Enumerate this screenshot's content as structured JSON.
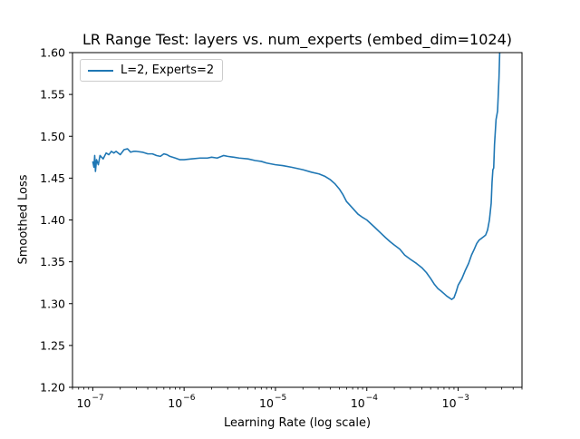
{
  "chart_data": {
    "type": "line",
    "title": "LR Range Test: layers vs. num_experts (embed_dim=1024)",
    "xlabel": "Learning Rate (log scale)",
    "ylabel": "Smoothed Loss",
    "x_scale": "log",
    "xlim": [
      6e-08,
      0.005
    ],
    "ylim": [
      1.2,
      1.6
    ],
    "x_ticks": [
      {
        "base": "10",
        "exp": "−7",
        "value": 1e-07
      },
      {
        "base": "10",
        "exp": "−6",
        "value": 1e-06
      },
      {
        "base": "10",
        "exp": "−5",
        "value": 1e-05
      },
      {
        "base": "10",
        "exp": "−4",
        "value": 0.0001
      },
      {
        "base": "10",
        "exp": "−3",
        "value": 0.001
      }
    ],
    "y_ticks": [
      "1.20",
      "1.25",
      "1.30",
      "1.35",
      "1.40",
      "1.45",
      "1.50",
      "1.55",
      "1.60"
    ],
    "grid": false,
    "legend_position": "top-left",
    "colors": {
      "series": "#1f77b4"
    },
    "series": [
      {
        "name": "L=2, Experts=2",
        "points": [
          [
            1e-07,
            1.47
          ],
          [
            1.03e-07,
            1.463
          ],
          [
            1.05e-07,
            1.477
          ],
          [
            1.07e-07,
            1.458
          ],
          [
            1.1e-07,
            1.472
          ],
          [
            1.15e-07,
            1.466
          ],
          [
            1.2e-07,
            1.477
          ],
          [
            1.3e-07,
            1.473
          ],
          [
            1.4e-07,
            1.48
          ],
          [
            1.5e-07,
            1.478
          ],
          [
            1.6e-07,
            1.482
          ],
          [
            1.7e-07,
            1.48
          ],
          [
            1.8e-07,
            1.482
          ],
          [
            2e-07,
            1.478
          ],
          [
            2.2e-07,
            1.484
          ],
          [
            2.4e-07,
            1.485
          ],
          [
            2.6e-07,
            1.481
          ],
          [
            2.8e-07,
            1.482
          ],
          [
            3e-07,
            1.482
          ],
          [
            3.5e-07,
            1.481
          ],
          [
            4e-07,
            1.479
          ],
          [
            4.5e-07,
            1.479
          ],
          [
            5e-07,
            1.477
          ],
          [
            5.5e-07,
            1.476
          ],
          [
            6e-07,
            1.479
          ],
          [
            6.5e-07,
            1.478
          ],
          [
            7e-07,
            1.476
          ],
          [
            8e-07,
            1.474
          ],
          [
            9e-07,
            1.472
          ],
          [
            1e-06,
            1.472
          ],
          [
            1.2e-06,
            1.473
          ],
          [
            1.5e-06,
            1.474
          ],
          [
            1.8e-06,
            1.474
          ],
          [
            2e-06,
            1.475
          ],
          [
            2.3e-06,
            1.474
          ],
          [
            2.7e-06,
            1.477
          ],
          [
            3e-06,
            1.476
          ],
          [
            3.5e-06,
            1.475
          ],
          [
            4e-06,
            1.474
          ],
          [
            5e-06,
            1.473
          ],
          [
            6e-06,
            1.471
          ],
          [
            7e-06,
            1.47
          ],
          [
            8e-06,
            1.468
          ],
          [
            1e-05,
            1.466
          ],
          [
            1.2e-05,
            1.465
          ],
          [
            1.5e-05,
            1.463
          ],
          [
            2e-05,
            1.46
          ],
          [
            2.5e-05,
            1.457
          ],
          [
            3e-05,
            1.455
          ],
          [
            3.5e-05,
            1.452
          ],
          [
            4e-05,
            1.448
          ],
          [
            4.5e-05,
            1.443
          ],
          [
            5e-05,
            1.437
          ],
          [
            5.5e-05,
            1.43
          ],
          [
            6e-05,
            1.422
          ],
          [
            7e-05,
            1.414
          ],
          [
            8e-05,
            1.407
          ],
          [
            9e-05,
            1.403
          ],
          [
            0.0001,
            1.4
          ],
          [
            0.00012,
            1.392
          ],
          [
            0.00014,
            1.385
          ],
          [
            0.00016,
            1.379
          ],
          [
            0.00018,
            1.374
          ],
          [
            0.0002,
            1.37
          ],
          [
            0.00023,
            1.365
          ],
          [
            0.00026,
            1.358
          ],
          [
            0.0003,
            1.353
          ],
          [
            0.00035,
            1.348
          ],
          [
            0.0004,
            1.343
          ],
          [
            0.00045,
            1.337
          ],
          [
            0.0005,
            1.33
          ],
          [
            0.00055,
            1.323
          ],
          [
            0.0006,
            1.318
          ],
          [
            0.00065,
            1.315
          ],
          [
            0.0007,
            1.312
          ],
          [
            0.00075,
            1.309
          ],
          [
            0.0008,
            1.307
          ],
          [
            0.00085,
            1.305
          ],
          [
            0.0009,
            1.307
          ],
          [
            0.00095,
            1.314
          ],
          [
            0.001,
            1.322
          ],
          [
            0.0011,
            1.33
          ],
          [
            0.0012,
            1.34
          ],
          [
            0.0013,
            1.348
          ],
          [
            0.0014,
            1.358
          ],
          [
            0.0015,
            1.365
          ],
          [
            0.0016,
            1.372
          ],
          [
            0.0017,
            1.376
          ],
          [
            0.0018,
            1.378
          ],
          [
            0.0019,
            1.38
          ],
          [
            0.002,
            1.382
          ],
          [
            0.0021,
            1.388
          ],
          [
            0.0022,
            1.4
          ],
          [
            0.0023,
            1.42
          ],
          [
            0.00235,
            1.445
          ],
          [
            0.0024,
            1.46
          ],
          [
            0.00245,
            1.462
          ],
          [
            0.0025,
            1.49
          ],
          [
            0.0026,
            1.52
          ],
          [
            0.0027,
            1.53
          ],
          [
            0.00275,
            1.55
          ],
          [
            0.0028,
            1.57
          ],
          [
            0.00285,
            1.6
          ],
          [
            0.0029,
            1.64
          ]
        ]
      }
    ]
  }
}
